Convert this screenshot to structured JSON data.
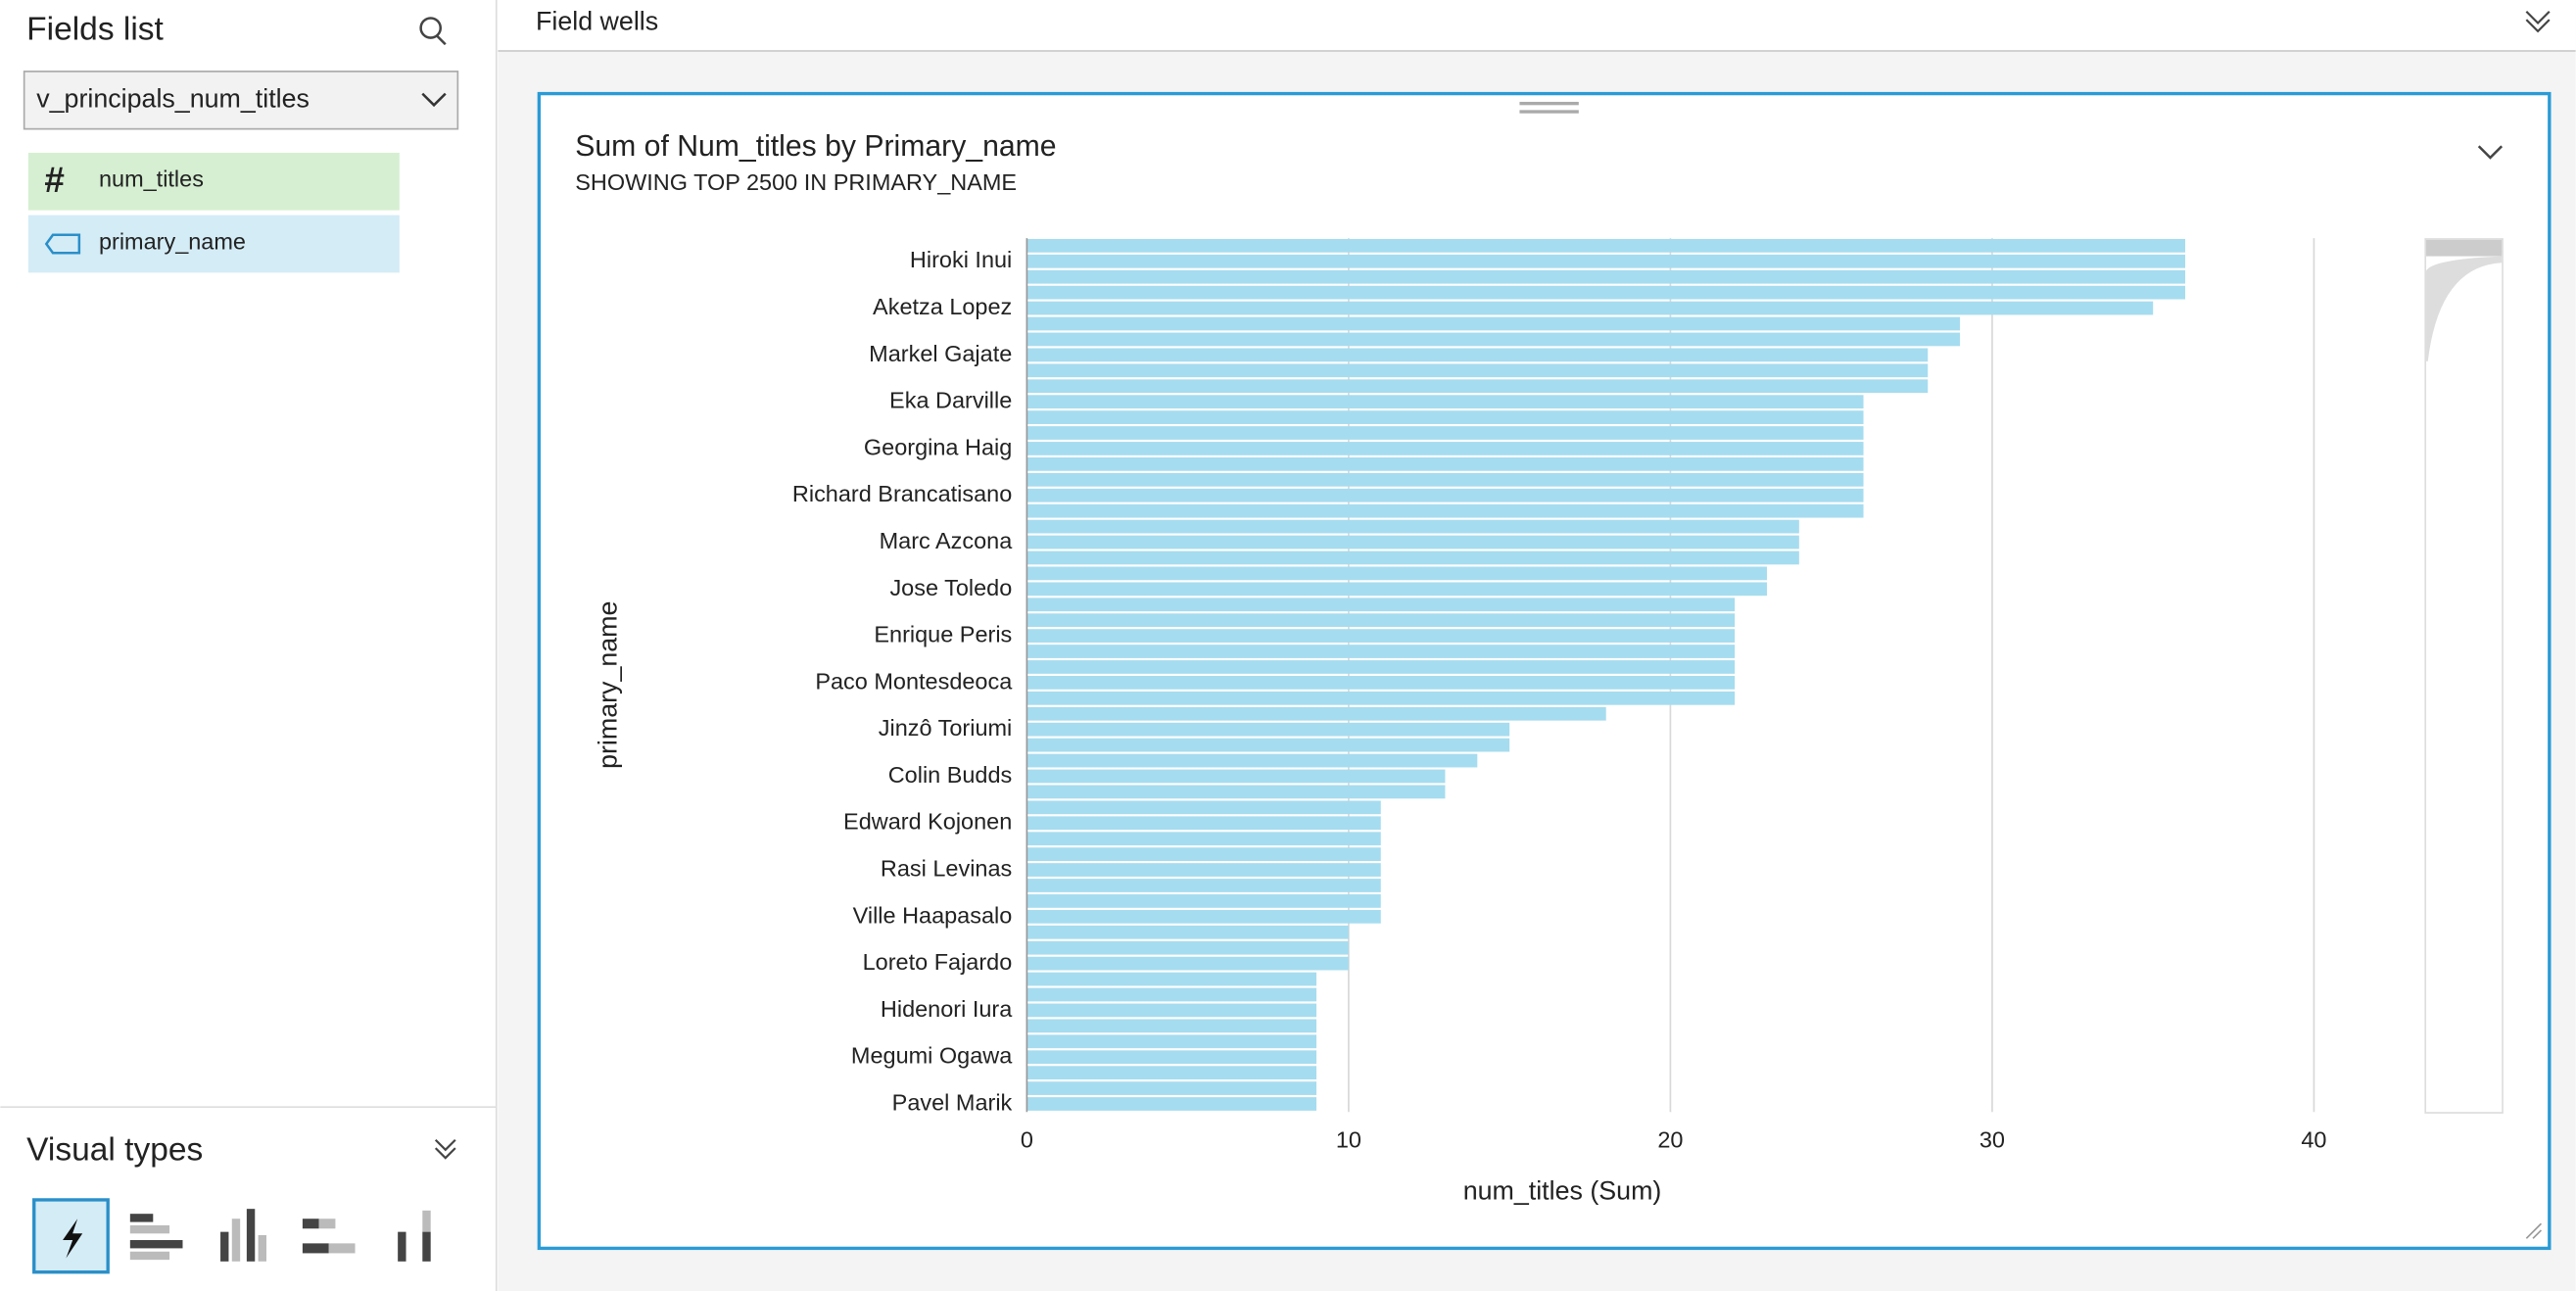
{
  "sidebar": {
    "title": "Fields list",
    "dataset": "v_principals_num_titles",
    "fields": [
      "num_titles",
      "primary_name"
    ],
    "visual_types_title": "Visual types"
  },
  "field_wells": "Field wells",
  "chart_data": {
    "type": "bar",
    "orientation": "horizontal",
    "title": "Sum of Num_titles by Primary_name",
    "subtitle": "SHOWING TOP 2500 IN PRIMARY_NAME",
    "y_label": "primary_name",
    "x_label": "num_titles (Sum)",
    "categories": [
      null,
      "Hiroki Inui",
      null,
      null,
      "Aketza Lopez",
      null,
      null,
      "Markel Gajate",
      null,
      null,
      "Eka Darville",
      null,
      null,
      "Georgina Haig",
      null,
      null,
      "Richard Brancatisano",
      null,
      null,
      "Marc Azcona",
      null,
      null,
      "Jose Toledo",
      null,
      null,
      "Enrique Peris",
      null,
      null,
      "Paco Montesdeoca",
      null,
      null,
      "Jinzô Toriumi",
      null,
      null,
      "Colin Budds",
      null,
      null,
      "Edward Kojonen",
      null,
      null,
      "Rasi Levinas",
      null,
      null,
      "Ville Haapasalo",
      null,
      null,
      "Loreto Fajardo",
      null,
      null,
      "Hidenori Iura",
      null,
      null,
      "Megumi Ogawa",
      null,
      null,
      "Pavel Marik"
    ],
    "values": [
      36,
      36,
      36,
      36,
      35,
      29,
      29,
      28,
      28,
      28,
      26,
      26,
      26,
      26,
      26,
      26,
      26,
      26,
      24,
      24,
      24,
      23,
      23,
      22,
      22,
      22,
      22,
      22,
      22,
      22,
      18,
      15,
      15,
      14,
      13,
      13,
      11,
      11,
      11,
      11,
      11,
      11,
      11,
      11,
      10,
      10,
      10,
      9,
      9,
      9,
      9,
      9,
      9,
      9,
      9,
      9
    ],
    "color": "#a6dcef",
    "xlim": [
      0,
      41.6
    ],
    "xticks": [
      0,
      10,
      20,
      30,
      40
    ],
    "grid": true
  }
}
